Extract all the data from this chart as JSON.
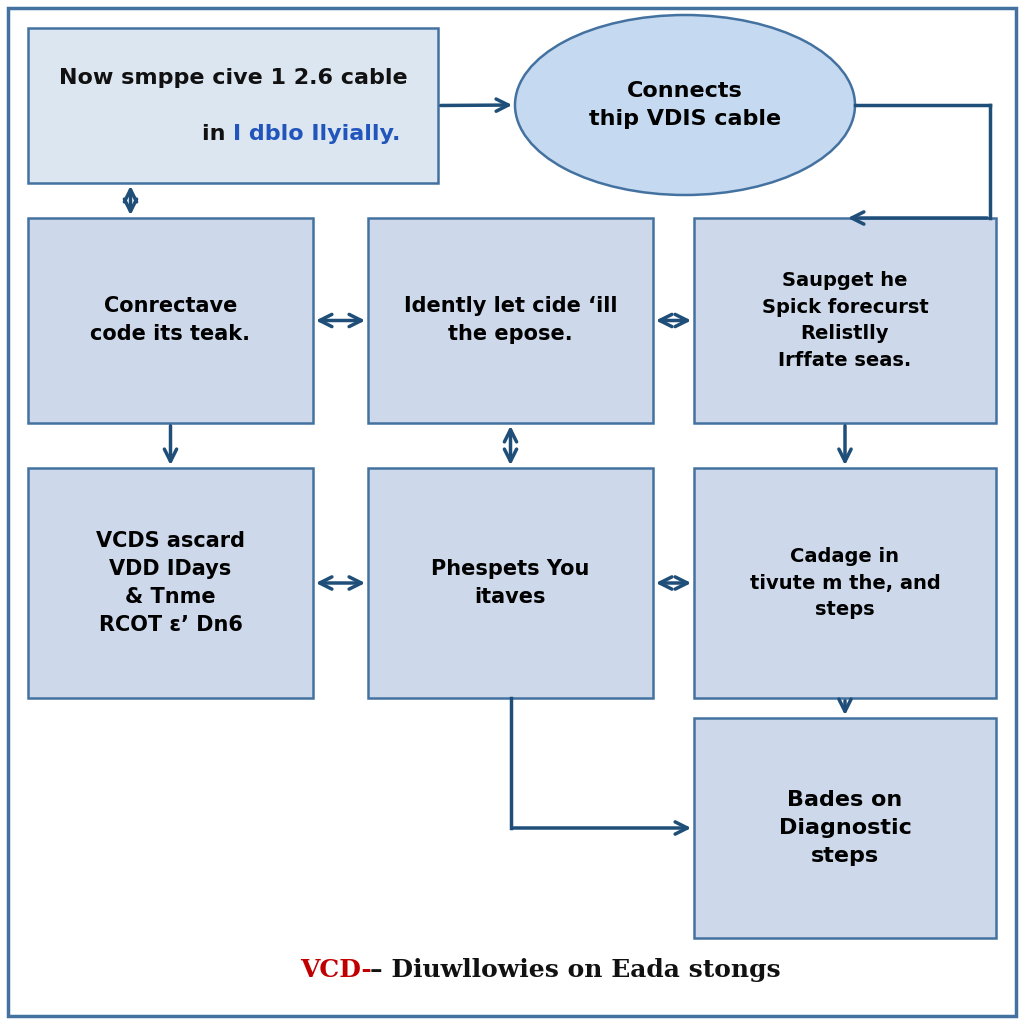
{
  "bg_color": "#ffffff",
  "border_color": "#4472a0",
  "box_fill_light": "#cdd9ea",
  "box_fill_lighter": "#dce6f1",
  "box_edge": "#4472a0",
  "ellipse_fill": "#c5d9f0",
  "ellipse_edge": "#4472a0",
  "arrow_color": "#1f4e79",
  "title_red": "#c00000",
  "title_black": "#111111",
  "ellipse_text": "Connects\nthip VDIS cable",
  "box2_text": "Saupget he\nSpick forecurst\nRelistlly\nIrffate seas.",
  "box3_text": "Conrectave\ncode its teak.",
  "box4_text": "Idently let cide ‘ill\nthe epose.",
  "box5_text": "VCDS ascard\nVDD IDays\n& Tnme\nRCOT ε’ Dn6",
  "box6_text": "Phespets You\nitaves",
  "box7_text": "Cadage in\ntivute m the, and\nsteps",
  "box8_text": "Bades on\nDiagnostic\nsteps",
  "caption_red": "VCD-",
  "caption_black": "– Diuwllowies on Eada stongs",
  "font_size_box": 14,
  "font_size_caption": 16
}
